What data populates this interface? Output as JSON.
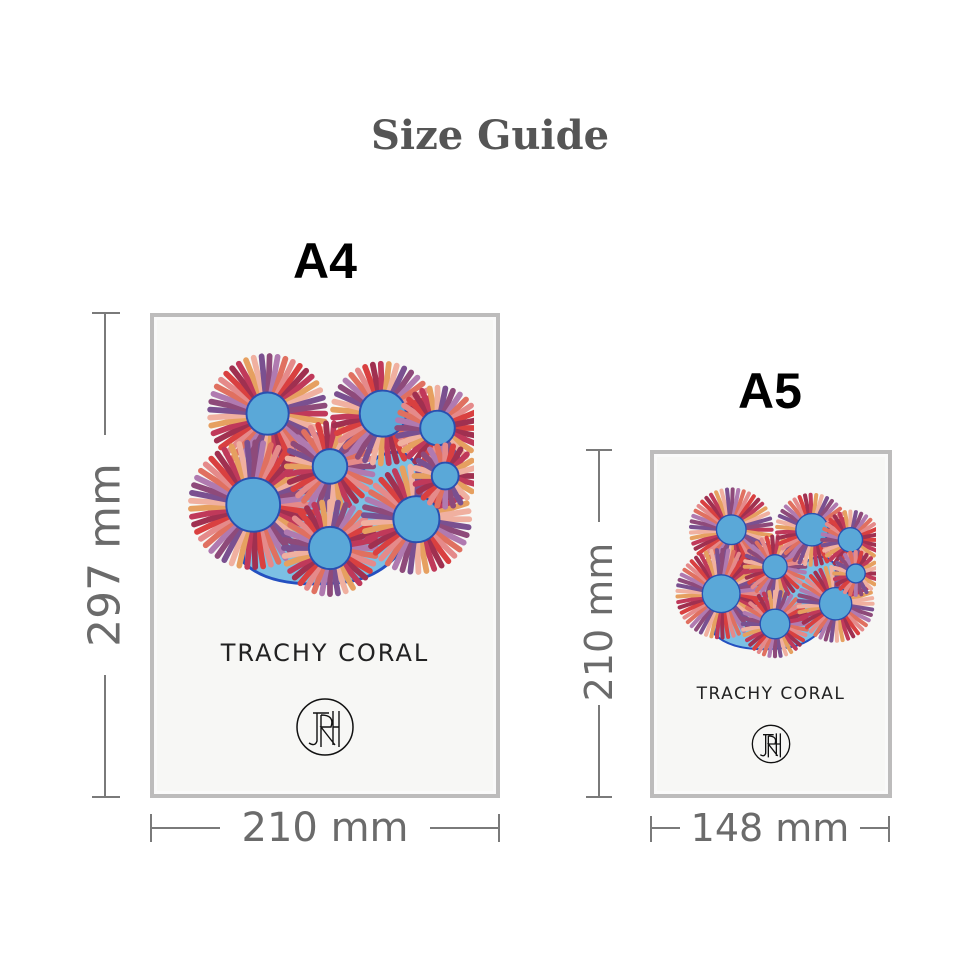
{
  "title": "Size Guide",
  "sizes": [
    {
      "label": "A4",
      "width": "210 mm",
      "height": "297 mm",
      "artwork_title": "TRACHY CORAL",
      "signature": "JRH"
    },
    {
      "label": "A5",
      "width": "148 mm",
      "height": "210 mm",
      "artwork_title": "TRACHY CORAL",
      "signature": "JRH"
    }
  ],
  "colors": {
    "title": "#555555",
    "dimension": "#6b6b6b",
    "frame": "#bdbcbc"
  }
}
